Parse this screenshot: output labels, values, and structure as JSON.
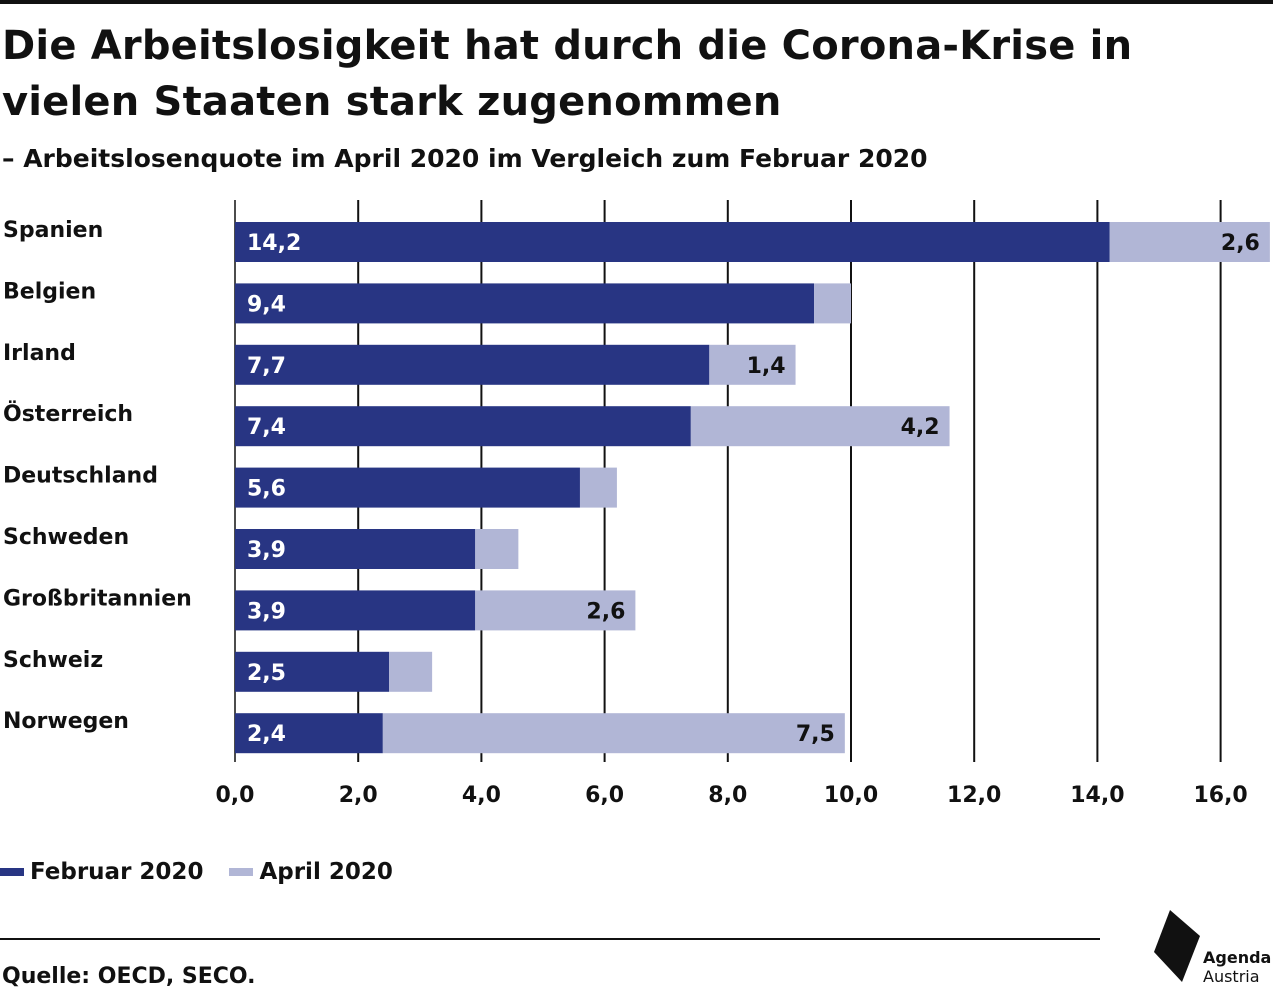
{
  "title": "Die Arbeitslosigkeit hat durch die Corona-Krise in vielen Staaten stark zugenommen",
  "subtitle": "– Arbeitslosenquote im April 2020 im Vergleich zum Februar 2020",
  "source": "Quelle: OECD, SECO.",
  "logo": {
    "line1": "Agenda",
    "line2": "Austria"
  },
  "colors": {
    "februar": "#283583",
    "april": "#b1b6d6",
    "text": "#111111"
  },
  "chart_data": {
    "type": "bar",
    "orientation": "horizontal",
    "stacked": true,
    "categories": [
      "Spanien",
      "Belgien",
      "Irland",
      "Österreich",
      "Deutschland",
      "Schweden",
      "Großbritannien",
      "Schweiz",
      "Norwegen"
    ],
    "series": [
      {
        "name": "Februar 2020",
        "values": [
          14.2,
          9.4,
          7.7,
          7.4,
          5.6,
          3.9,
          3.9,
          2.5,
          2.4
        ],
        "labels": [
          "14,2",
          "9,4",
          "7,7",
          "7,4",
          "5,6",
          "3,9",
          "3,9",
          "2,5",
          "2,4"
        ]
      },
      {
        "name": "April 2020",
        "values": [
          2.6,
          0.6,
          1.4,
          4.2,
          0.6,
          0.7,
          2.6,
          0.7,
          7.5
        ],
        "labels": [
          "2,6",
          "",
          "1,4",
          "4,2",
          "",
          "",
          "2,6",
          "",
          "7,5"
        ]
      }
    ],
    "xlim": [
      0,
      16.8
    ],
    "xticks": [
      0,
      2,
      4,
      6,
      8,
      10,
      12,
      14,
      16
    ],
    "xtick_labels": [
      "0,0",
      "2,0",
      "4,0",
      "6,0",
      "8,0",
      "10,0",
      "12,0",
      "14,0",
      "16,0"
    ],
    "grid": true,
    "legend_position": "bottom-left"
  }
}
